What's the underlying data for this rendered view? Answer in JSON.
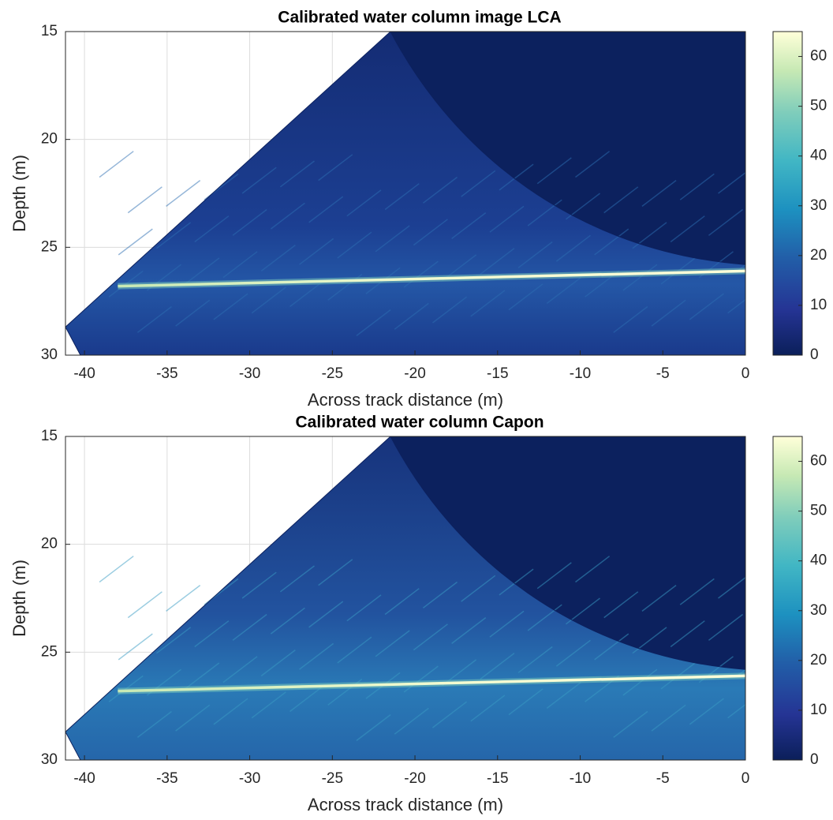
{
  "chart_data": [
    {
      "type": "heatmap",
      "title": "Calibrated water column image LCA",
      "xlabel": "Across track distance (m)",
      "ylabel": "Depth (m)",
      "xlim": [
        -41.15,
        0
      ],
      "ylim": [
        30,
        15
      ],
      "xticks": [
        -40,
        -35,
        -30,
        -25,
        -20,
        -15,
        -10,
        -5,
        0
      ],
      "yticks": [
        15,
        20,
        25,
        30
      ],
      "grid": true,
      "clim": [
        0,
        65
      ],
      "cticks": [
        0,
        10,
        20,
        30,
        40,
        50,
        60
      ]
    },
    {
      "type": "heatmap",
      "title": "Calibrated water column Capon",
      "xlabel": "Across track distance (m)",
      "ylabel": "Depth (m)",
      "xlim": [
        -41.15,
        0
      ],
      "ylim": [
        30,
        15
      ],
      "xticks": [
        -40,
        -35,
        -30,
        -25,
        -20,
        -15,
        -10,
        -5,
        0
      ],
      "yticks": [
        15,
        20,
        25,
        30
      ],
      "grid": true,
      "clim": [
        0,
        65
      ],
      "cticks": [
        0,
        10,
        20,
        30,
        40,
        50,
        60
      ]
    }
  ]
}
